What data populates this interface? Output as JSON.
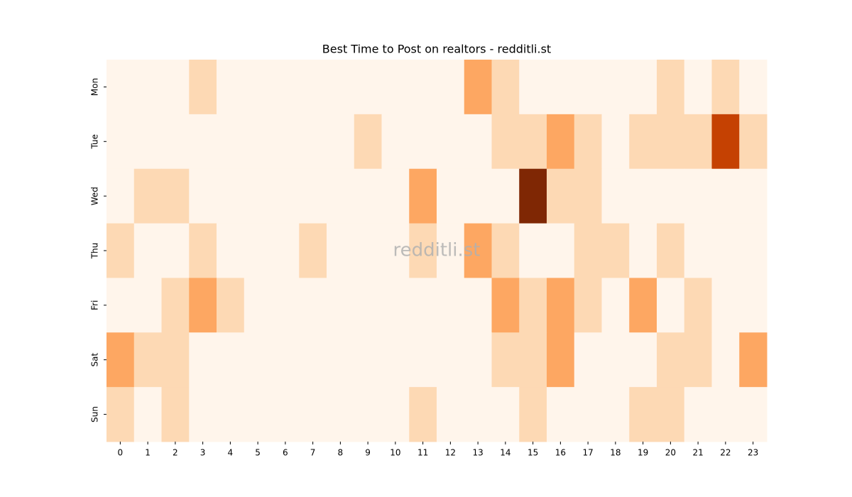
{
  "chart_data": {
    "type": "heatmap",
    "title": "Best Time to Post on realtors - redditli.st",
    "watermark": "redditli.st",
    "columns": [
      0,
      1,
      2,
      3,
      4,
      5,
      6,
      7,
      8,
      9,
      10,
      11,
      12,
      13,
      14,
      15,
      16,
      17,
      18,
      19,
      20,
      21,
      22,
      23
    ],
    "rows": [
      "Mon",
      "Tue",
      "Wed",
      "Thu",
      "Fri",
      "Sat",
      "Sun"
    ],
    "colormap": "Oranges",
    "values": [
      [
        0,
        0,
        0,
        1,
        0,
        0,
        0,
        0,
        0,
        0,
        0,
        0,
        0,
        2,
        1,
        0,
        0,
        0,
        0,
        0,
        1,
        0,
        1,
        0
      ],
      [
        0,
        0,
        0,
        0,
        0,
        0,
        0,
        0,
        0,
        1,
        0,
        0,
        0,
        0,
        1,
        1,
        2,
        1,
        0,
        1,
        1,
        1,
        4,
        1
      ],
      [
        0,
        1,
        1,
        0,
        0,
        0,
        0,
        0,
        0,
        0,
        0,
        2,
        0,
        0,
        0,
        5,
        1,
        1,
        0,
        0,
        0,
        0,
        0,
        0
      ],
      [
        1,
        0,
        0,
        1,
        0,
        0,
        0,
        1,
        0,
        0,
        0,
        1,
        0,
        2,
        1,
        0,
        0,
        1,
        1,
        0,
        1,
        0,
        0,
        0
      ],
      [
        0,
        0,
        1,
        2,
        1,
        0,
        0,
        0,
        0,
        0,
        0,
        0,
        0,
        0,
        2,
        1,
        2,
        1,
        0,
        2,
        0,
        1,
        0,
        0
      ],
      [
        2,
        1,
        1,
        0,
        0,
        0,
        0,
        0,
        0,
        0,
        0,
        0,
        0,
        0,
        1,
        1,
        2,
        0,
        0,
        0,
        1,
        1,
        0,
        2
      ],
      [
        1,
        0,
        1,
        0,
        0,
        0,
        0,
        0,
        0,
        0,
        0,
        1,
        0,
        0,
        0,
        1,
        0,
        0,
        0,
        1,
        1,
        0,
        0,
        0
      ]
    ]
  }
}
